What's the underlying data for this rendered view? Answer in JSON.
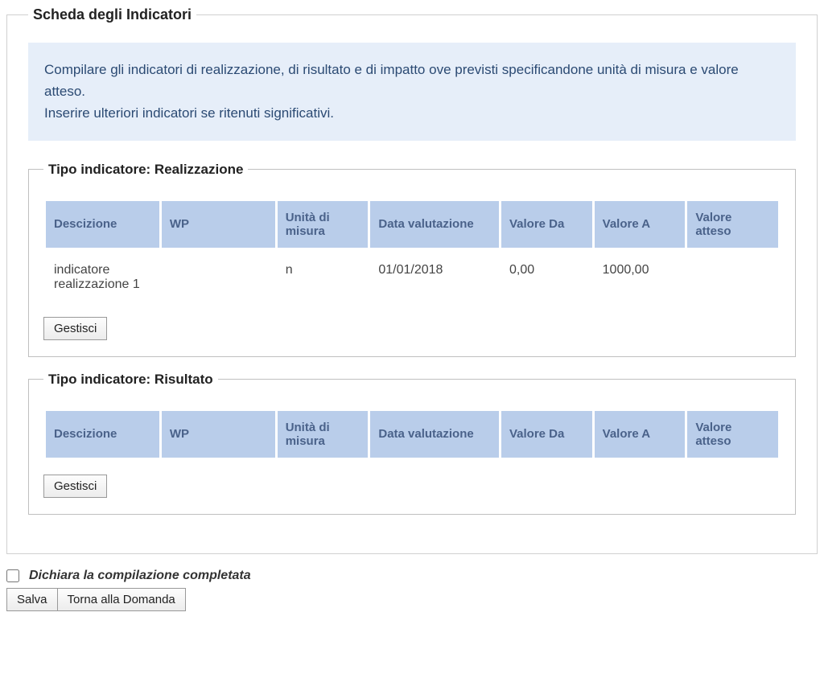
{
  "page": {
    "title": "Scheda degli Indicatori",
    "info_line1": "Compilare gli indicatori di realizzazione, di risultato e di impatto ove previsti specificandone unità di misura e valore atteso.",
    "info_line2": "Inserire ulteriori indicatori se ritenuti significativi."
  },
  "columns": {
    "descrizione": "Descizione",
    "wp": "WP",
    "unita": "Unità di misura",
    "data_val": "Data valutazione",
    "valore_da": "Valore Da",
    "valore_a": "Valore A",
    "valore_atteso": "Valore atteso"
  },
  "col_widths": {
    "descrizione": "15%",
    "wp": "15%",
    "unita": "12%",
    "data_val": "17%",
    "valore_da": "12%",
    "valore_a": "12%",
    "valore_atteso": "12%"
  },
  "sections": {
    "realizzazione": {
      "title": "Tipo indicatore: Realizzazione",
      "rows": [
        {
          "descrizione": "indicatore realizzazione 1",
          "wp": "",
          "unita": "n",
          "data_val": "01/01/2018",
          "valore_da": "0,00",
          "valore_a": "1000,00",
          "valore_atteso": ""
        }
      ],
      "button_label": "Gestisci"
    },
    "risultato": {
      "title": "Tipo indicatore: Risultato",
      "rows": [],
      "button_label": "Gestisci"
    }
  },
  "footer": {
    "checkbox_label": "Dichiara la compilazione completata",
    "save_label": "Salva",
    "back_label": "Torna alla Domanda"
  },
  "theme": {
    "info_bg": "#e6eef9",
    "info_text": "#2b4a73",
    "th_bg": "#b9cdea",
    "th_text": "#4a628a"
  }
}
